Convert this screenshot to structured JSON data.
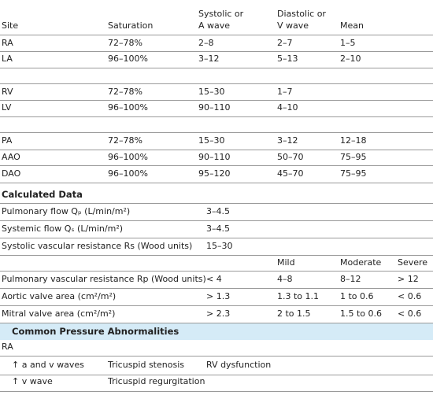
{
  "header": {
    "columns": [
      [
        "Site"
      ],
      [
        "Saturation"
      ],
      [
        "Systolic or",
        "A wave"
      ],
      [
        "Diastolic or",
        "V wave"
      ],
      [
        "Mean"
      ]
    ]
  },
  "pressures": {
    "groups": [
      [
        [
          "RA",
          "72–78%",
          "2–8",
          "2–7",
          "1–5"
        ],
        [
          "LA",
          "96–100%",
          "3–12",
          "5–13",
          "2–10"
        ]
      ],
      [
        [
          "RV",
          "72–78%",
          "15–30",
          "1–7"
        ],
        [
          "LV",
          "96–100%",
          "90–110",
          "4–10"
        ]
      ],
      [
        [
          "PA",
          "72–78%",
          "15–30",
          "3–12",
          "12–18"
        ],
        [
          "AAO",
          "96–100%",
          "90–110",
          "50–70",
          "75–95"
        ],
        [
          "DAO",
          "96–100%",
          "95–120",
          "45–70",
          "75–95"
        ]
      ]
    ]
  },
  "calculated": {
    "title": "Calculated Data",
    "rows": [
      [
        "Pulmonary flow Qₚ (L/min/m²)",
        "3–4.5"
      ],
      [
        "Systemic flow Qₛ (L/min/m²)",
        "3–4.5"
      ],
      [
        "Systolic vascular resistance Rs (Wood units)",
        "15–30"
      ]
    ],
    "severity_header": [
      "Mild",
      "Moderate",
      "Severe"
    ],
    "severity_rows": [
      [
        "Pulmonary vascular resistance Rp (Wood units)",
        "< 4",
        "4–8",
        "8–12",
        "> 12"
      ],
      [
        "Aortic valve area (cm²/m²)",
        "> 1.3",
        "1.3 to 1.1",
        "1 to 0.6",
        "< 0.6"
      ],
      [
        "Mitral valve area (cm²/m²)",
        "> 2.3",
        "2 to 1.5",
        "1.5 to 0.6",
        "< 0.6"
      ]
    ]
  },
  "abnormalities": {
    "title": "Common Pressure Abnormalities",
    "subtitle": "RA",
    "rows": [
      [
        "↑ a and v waves",
        "Tricuspid stenosis",
        "RV dysfunction"
      ],
      [
        "↑ v wave",
        "Tricuspid regurgitation"
      ]
    ]
  }
}
